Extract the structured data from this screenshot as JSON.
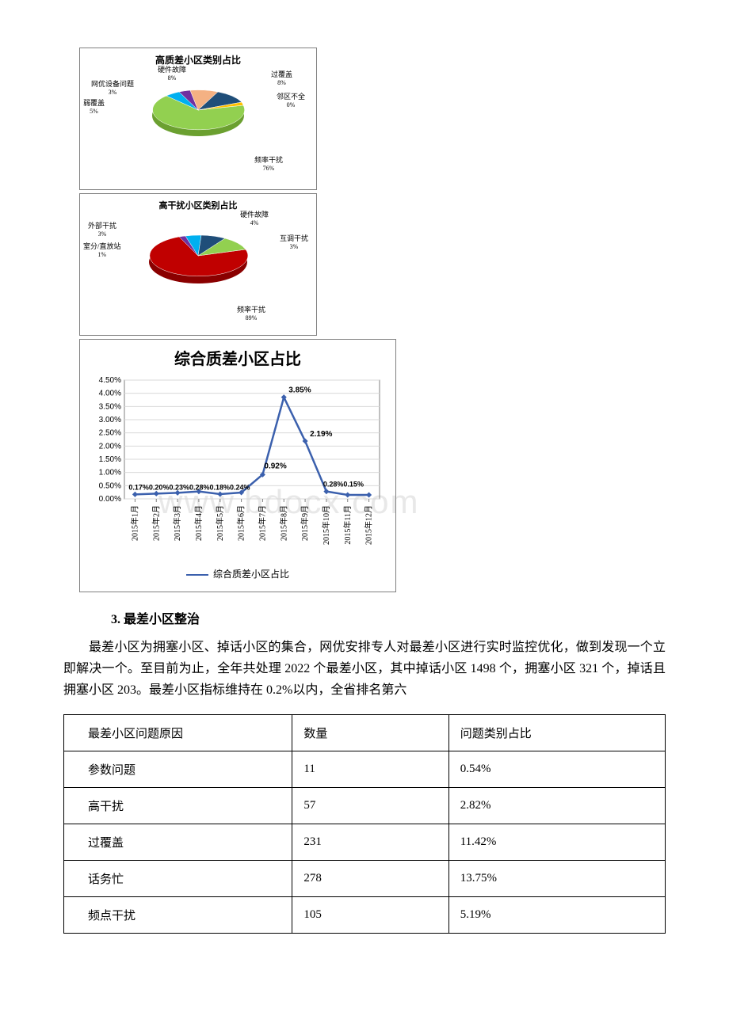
{
  "watermark": "www.bdocx.com",
  "pie1": {
    "title": "高质差小区类别占比",
    "slices": [
      {
        "label": "过覆盖",
        "pct": "8%",
        "color": "#1f4e79"
      },
      {
        "label": "邻区不全",
        "pct": "0%",
        "color": "#ffc000"
      },
      {
        "label": "频率干扰",
        "pct": "76%",
        "color": "#92d050"
      },
      {
        "label": "弱覆盖",
        "pct": "5%",
        "color": "#00b0f0"
      },
      {
        "label": "网优设备问题",
        "pct": "3%",
        "color": "#7030a0"
      },
      {
        "label": "硬件故障",
        "pct": "8%",
        "color": "#f4b183"
      }
    ]
  },
  "pie2": {
    "title": "高干扰小区类别占比",
    "slices": [
      {
        "label": "硬件故障",
        "pct": "4%",
        "color": "#1f4e79"
      },
      {
        "label": "互调干扰",
        "pct": "3%",
        "color": "#92d050"
      },
      {
        "label": "频率干扰",
        "pct": "89%",
        "color": "#c00000"
      },
      {
        "label": "室分/直放站",
        "pct": "1%",
        "color": "#7030a0"
      },
      {
        "label": "外部干扰",
        "pct": "3%",
        "color": "#00b0f0"
      }
    ]
  },
  "line_chart": {
    "title": "综合质差小区占比",
    "series_name": "综合质差小区占比",
    "line_color": "#3b60ad",
    "y_max": 4.5,
    "y_step": 0.5,
    "background_color": "#ffffff",
    "grid_color": "#bfbfbf",
    "categories": [
      "2015年1月",
      "2015年2月",
      "2015年3月",
      "2015年4月",
      "2015年5月",
      "2015年6月",
      "2015年7月",
      "2015年8月",
      "2015年9月",
      "2015年10月",
      "2015年11月",
      "2015年12月"
    ],
    "values": [
      0.17,
      0.2,
      0.23,
      0.28,
      0.18,
      0.24,
      0.92,
      3.85,
      2.19,
      0.28,
      0.15,
      0.15
    ],
    "labels_visible": [
      "0.17%",
      "0.20%",
      "0.23%",
      "0.28%",
      "0.18%",
      "0.24%",
      "0.92%",
      "3.85%",
      "2.19%",
      "0.28%",
      "0.15%",
      ""
    ]
  },
  "section_heading": "3. 最差小区整治",
  "body_text": "最差小区为拥塞小区、掉话小区的集合，网优安排专人对最差小区进行实时监控优化，做到发现一个立即解决一个。至目前为止，全年共处理 2022 个最差小区，其中掉话小区 1498 个，拥塞小区 321 个，掉话且拥塞小区 203。最差小区指标维持在 0.2%以内，全省排名第六",
  "table": {
    "columns": [
      "最差小区问题原因",
      "数量",
      "问题类别占比"
    ],
    "rows": [
      [
        "参数问题",
        "11",
        "0.54%"
      ],
      [
        "高干扰",
        "57",
        "2.82%"
      ],
      [
        "过覆盖",
        "231",
        "11.42%"
      ],
      [
        "话务忙",
        "278",
        "13.75%"
      ],
      [
        "频点干扰",
        "105",
        "5.19%"
      ]
    ],
    "col_widths": [
      "38%",
      "26%",
      "36%"
    ]
  }
}
